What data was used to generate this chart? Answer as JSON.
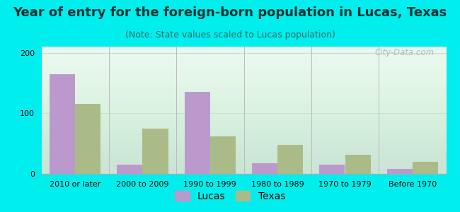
{
  "title": "Year of entry for the foreign-born population in Lucas, Texas",
  "subtitle": "(Note: State values scaled to Lucas population)",
  "categories": [
    "2010 or later",
    "2000 to 2009",
    "1990 to 1999",
    "1980 to 1989",
    "1970 to 1979",
    "Before 1970"
  ],
  "lucas_values": [
    165,
    15,
    135,
    18,
    15,
    8
  ],
  "texas_values": [
    115,
    75,
    62,
    48,
    32,
    20
  ],
  "lucas_color": "#bb99cc",
  "texas_color": "#aabb88",
  "background_color": "#00eeee",
  "plot_bg_color": "#e8f8ee",
  "ylim": [
    0,
    210
  ],
  "yticks": [
    0,
    100,
    200
  ],
  "watermark": "City-Data.com",
  "bar_width": 0.38,
  "title_fontsize": 13,
  "subtitle_fontsize": 9,
  "tick_fontsize": 8,
  "legend_fontsize": 10,
  "title_color": "#003333",
  "subtitle_color": "#336666"
}
